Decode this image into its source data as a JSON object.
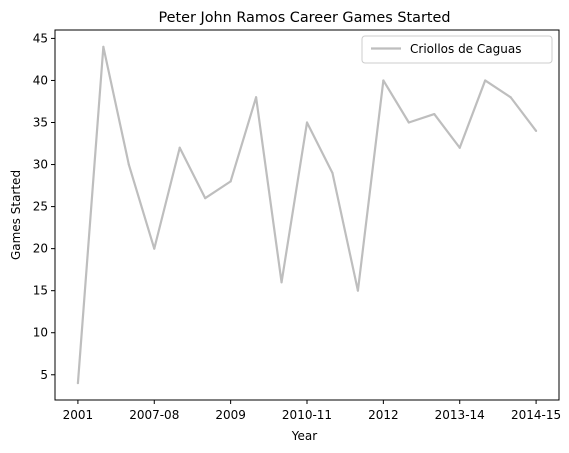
{
  "chart_data": {
    "type": "line",
    "title": "Peter John Ramos Career Games Started",
    "xlabel": "Year",
    "ylabel": "Games Started",
    "x_tick_labels": [
      "2001",
      "2007-08",
      "2009",
      "2010-11",
      "2012",
      "2013-14",
      "2014-15"
    ],
    "x_tick_positions": [
      0,
      3,
      6,
      9,
      12,
      15,
      18
    ],
    "y_ticks": [
      5,
      10,
      15,
      20,
      25,
      30,
      35,
      40,
      45
    ],
    "ylim": [
      2,
      46
    ],
    "xlim": [
      -0.9,
      18.9
    ],
    "grid": false,
    "legend_position": "top-right",
    "series": [
      {
        "name": "Criollos de Caguas",
        "color": "#bebebe",
        "x": [
          0,
          1,
          2,
          3,
          4,
          5,
          6,
          7,
          8,
          9,
          10,
          11,
          12,
          13,
          14,
          15,
          16,
          17,
          18
        ],
        "values": [
          4,
          44,
          30,
          20,
          32,
          26,
          28,
          38,
          16,
          35,
          29,
          15,
          40,
          35,
          36,
          32,
          40,
          38,
          34
        ]
      }
    ]
  }
}
